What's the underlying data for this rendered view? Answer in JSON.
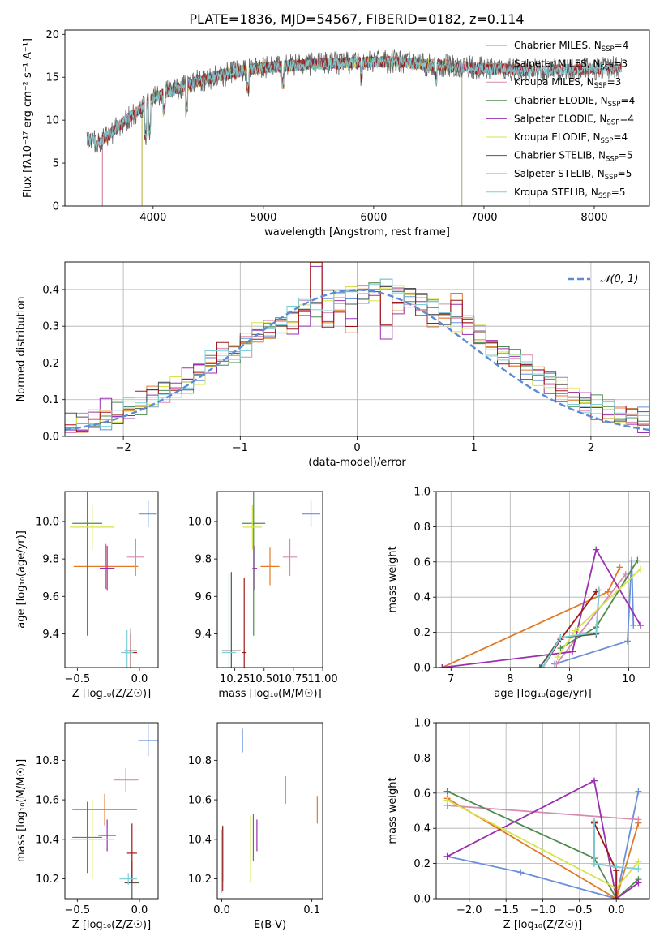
{
  "figure_title": "PLATE=1836, MJD=54567, FIBERID=0182, z=0.114",
  "model_colors": [
    "#6a8fdb",
    "#e07b28",
    "#d88ab0",
    "#4f8a4f",
    "#9a30b0",
    "#d6e34a",
    "#555555",
    "#a01818",
    "#7ecfd6"
  ],
  "chart_data": [
    {
      "id": "spectrum",
      "type": "line",
      "xlabel": "wavelength [Angstrom, rest frame]",
      "ylabel": "Flux [fλ10⁻¹⁷ erg cm⁻² s⁻¹ A⁻¹]",
      "xlim": [
        3200,
        8500
      ],
      "ylim": [
        0,
        20.5
      ],
      "xticks": [
        "4000",
        "5000",
        "6000",
        "7000",
        "8000"
      ],
      "yticks": [
        "0",
        "5",
        "10",
        "15",
        "20"
      ],
      "legend_position": "top-right",
      "continuum": {
        "x": [
          3400,
          3500,
          3600,
          3700,
          3800,
          3900,
          4000,
          4200,
          4400,
          4600,
          4800,
          5000,
          5200,
          5400,
          5600,
          5800,
          6000,
          6200,
          6400,
          6600,
          6800,
          7000,
          7200,
          7400,
          7600,
          7800,
          8000,
          8250
        ],
        "y": [
          8.0,
          7.4,
          8.2,
          9.5,
          10.5,
          11.4,
          12.6,
          13.6,
          14.5,
          15.2,
          15.7,
          16.1,
          16.3,
          16.5,
          16.6,
          16.7,
          16.8,
          16.8,
          16.5,
          16.4,
          16.2,
          16.0,
          15.9,
          15.8,
          15.8,
          15.9,
          16.0,
          16.1
        ]
      },
      "series": [
        {
          "name": "Chabrier MILES, N_SSP=4",
          "label_main": "Chabrier MILES, N",
          "label_sub": "SSP",
          "label_end": "=4",
          "x_start": 3540,
          "x_end": 7410
        },
        {
          "name": "Salpeter MILES, N_SSP=3",
          "label_main": "Salpeter MILES, N",
          "label_sub": "SSP",
          "label_end": "=3",
          "x_start": 3540,
          "x_end": 7410
        },
        {
          "name": "Kroupa MILES, N_SSP=3",
          "label_main": "Kroupa MILES, N",
          "label_sub": "SSP",
          "label_end": "=3",
          "x_start": 3540,
          "x_end": 7410
        },
        {
          "name": "Chabrier ELODIE, N_SSP=4",
          "label_main": "Chabrier ELODIE, N",
          "label_sub": "SSP",
          "label_end": "=4",
          "x_start": 3900,
          "x_end": 6800
        },
        {
          "name": "Salpeter ELODIE, N_SSP=4",
          "label_main": "Salpeter ELODIE, N",
          "label_sub": "SSP",
          "label_end": "=4",
          "x_start": 3900,
          "x_end": 6800
        },
        {
          "name": "Kroupa ELODIE, N_SSP=4",
          "label_main": "Kroupa ELODIE, N",
          "label_sub": "SSP",
          "label_end": "=4",
          "x_start": 3900,
          "x_end": 6800
        },
        {
          "name": "Chabrier STELIB, N_SSP=5",
          "label_main": "Chabrier STELIB, N",
          "label_sub": "SSP",
          "label_end": "=5",
          "x_start": 3400,
          "x_end": 8250
        },
        {
          "name": "Salpeter STELIB, N_SSP=5",
          "label_main": "Salpeter STELIB, N",
          "label_sub": "SSP",
          "label_end": "=5",
          "x_start": 3400,
          "x_end": 8250
        },
        {
          "name": "Kroupa STELIB, N_SSP=5",
          "label_main": "Kroupa STELIB, N",
          "label_sub": "SSP",
          "label_end": "=5",
          "x_start": 3400,
          "x_end": 8250
        }
      ]
    },
    {
      "id": "residuals",
      "type": "line",
      "xlabel": "(data-model)/error",
      "ylabel": "Normed distribution",
      "xlim": [
        -2.5,
        2.5
      ],
      "ylim": [
        0,
        0.475
      ],
      "xticks": [
        "−2",
        "−1",
        "0",
        "1",
        "2"
      ],
      "yticks": [
        "0.0",
        "0.1",
        "0.2",
        "0.3",
        "0.4"
      ],
      "grid": true,
      "legend_position": "top-right",
      "legend_label": "𝒩(0, 1)",
      "bin_width": 0.1,
      "series": [
        {
          "values": [
            0.03,
            0.035,
            0.045,
            0.05,
            0.06,
            0.07,
            0.085,
            0.1,
            0.12,
            0.13,
            0.15,
            0.17,
            0.2,
            0.215,
            0.23,
            0.25,
            0.28,
            0.3,
            0.31,
            0.33,
            0.35,
            0.36,
            0.37,
            0.38,
            0.39,
            0.395,
            0.4,
            0.4,
            0.395,
            0.385,
            0.37,
            0.355,
            0.335,
            0.32,
            0.3,
            0.28,
            0.25,
            0.23,
            0.21,
            0.19,
            0.17,
            0.15,
            0.13,
            0.11,
            0.095,
            0.08,
            0.07,
            0.06,
            0.05,
            0.045
          ]
        },
        {
          "values": [
            0.025,
            0.03,
            0.05,
            0.07,
            0.055,
            0.075,
            0.09,
            0.11,
            0.125,
            0.14,
            0.155,
            0.185,
            0.2,
            0.23,
            0.22,
            0.27,
            0.29,
            0.285,
            0.3,
            0.3,
            0.33,
            0.46,
            0.3,
            0.37,
            0.31,
            0.39,
            0.395,
            0.3,
            0.34,
            0.38,
            0.36,
            0.33,
            0.32,
            0.36,
            0.31,
            0.27,
            0.24,
            0.22,
            0.22,
            0.19,
            0.16,
            0.14,
            0.12,
            0.105,
            0.09,
            0.08,
            0.065,
            0.055,
            0.045,
            0.035
          ]
        }
      ]
    },
    {
      "id": "age_vs_Z",
      "type": "scatter",
      "xlabel": "Z [log₁₀(Z/Z☉)]",
      "ylabel": "age  [log₁₀(age/yr)]",
      "xlim": [
        -0.6,
        0.15
      ],
      "ylim": [
        9.22,
        10.16
      ],
      "xticks": [
        "−0.5",
        "0.0"
      ],
      "yticks": [
        "9.4",
        "9.6",
        "9.8",
        "10.0"
      ],
      "points": [
        {
          "series": 0,
          "x": 0.07,
          "y": 10.04,
          "xerr": 0.07,
          "yerr": 0.07
        },
        {
          "series": 1,
          "x": -0.27,
          "y": 9.76,
          "xerr": 0.26,
          "yerr": 0.12
        },
        {
          "series": 2,
          "x": -0.03,
          "y": 9.81,
          "xerr": 0.07,
          "yerr": 0.1
        },
        {
          "series": 3,
          "x": -0.42,
          "y": 9.99,
          "xerr": 0.12,
          "yerr": 0.6
        },
        {
          "series": 4,
          "x": -0.26,
          "y": 9.75,
          "xerr": 0.06,
          "yerr": 0.12
        },
        {
          "series": 5,
          "x": -0.38,
          "y": 9.97,
          "xerr": 0.18,
          "yerr": 0.12
        },
        {
          "series": 6,
          "x": -0.07,
          "y": 9.31,
          "xerr": 0.05,
          "yerr": 0.12
        },
        {
          "series": 7,
          "x": -0.07,
          "y": 9.3,
          "xerr": 0.05,
          "yerr": 0.1
        },
        {
          "series": 8,
          "x": -0.1,
          "y": 9.3,
          "xerr": 0.05,
          "yerr": 0.12
        }
      ]
    },
    {
      "id": "age_vs_mass",
      "type": "scatter",
      "xlabel": "mass [log₁₀(M/M☉)]",
      "ylabel": "",
      "xlim": [
        10.1,
        11.0
      ],
      "ylim": [
        9.22,
        10.16
      ],
      "xticks": [
        "10.25",
        "10.50",
        "10.75",
        "11.00"
      ],
      "yticks": [
        "9.4",
        "9.6",
        "9.8",
        "10.0"
      ],
      "points": [
        {
          "series": 0,
          "x": 10.9,
          "y": 10.04,
          "xerr": 0.08,
          "yerr": 0.07
        },
        {
          "series": 1,
          "x": 10.55,
          "y": 9.76,
          "xerr": 0.08,
          "yerr": 0.1
        },
        {
          "series": 2,
          "x": 10.72,
          "y": 9.81,
          "xerr": 0.06,
          "yerr": 0.1
        },
        {
          "series": 3,
          "x": 10.41,
          "y": 9.99,
          "xerr": 0.1,
          "yerr": 0.6
        },
        {
          "series": 4,
          "x": 10.42,
          "y": 9.75,
          "xerr": 0.02,
          "yerr": 0.12
        },
        {
          "series": 5,
          "x": 10.4,
          "y": 9.97,
          "xerr": 0.08,
          "yerr": 0.12
        },
        {
          "series": 6,
          "x": 10.22,
          "y": 9.31,
          "xerr": 0.08,
          "yerr": 0.42
        },
        {
          "series": 7,
          "x": 10.33,
          "y": 9.3,
          "xerr": 0.02,
          "yerr": 0.4
        },
        {
          "series": 8,
          "x": 10.2,
          "y": 9.3,
          "xerr": 0.06,
          "yerr": 0.42
        }
      ]
    },
    {
      "id": "mass_weight_vs_age",
      "type": "line",
      "xlabel": "age  [log₁₀(age/yr)]",
      "ylabel": "mass weight",
      "xlim": [
        6.75,
        10.35
      ],
      "ylim": [
        0,
        1.0
      ],
      "xticks": [
        "7",
        "8",
        "9",
        "10"
      ],
      "yticks": [
        "0.0",
        "0.2",
        "0.4",
        "0.6",
        "0.8",
        "1.0"
      ],
      "grid": true,
      "series": [
        {
          "series": 0,
          "x": [
            8.75,
            9.98,
            10.05,
            10.08
          ],
          "y": [
            0.02,
            0.15,
            0.61,
            0.24
          ]
        },
        {
          "series": 1,
          "x": [
            6.85,
            9.65,
            9.85
          ],
          "y": [
            0.0,
            0.43,
            0.57
          ]
        },
        {
          "series": 2,
          "x": [
            8.78,
            9.95
          ],
          "y": [
            0.02,
            0.53
          ]
        },
        {
          "series": 3,
          "x": [
            8.85,
            9.45,
            10.15
          ],
          "y": [
            0.11,
            0.23,
            0.61
          ]
        },
        {
          "series": 4,
          "x": [
            6.85,
            9.05,
            9.45,
            10.2
          ],
          "y": [
            0.0,
            0.09,
            0.67,
            0.24
          ]
        },
        {
          "series": 5,
          "x": [
            8.8,
            9.1,
            10.2
          ],
          "y": [
            0.06,
            0.21,
            0.56
          ]
        },
        {
          "series": 6,
          "x": [
            8.5,
            8.85,
            9.45,
            9.5
          ],
          "y": [
            0.0,
            0.17,
            0.19,
            0.44
          ]
        },
        {
          "series": 7,
          "x": [
            8.55,
            8.85,
            9.45
          ],
          "y": [
            0.0,
            0.16,
            0.43
          ]
        },
        {
          "series": 8,
          "x": [
            8.55,
            8.85,
            9.45,
            9.5
          ],
          "y": [
            0.0,
            0.17,
            0.2,
            0.44
          ]
        }
      ]
    },
    {
      "id": "mass_vs_Z",
      "type": "scatter",
      "xlabel": "Z [log₁₀(Z/Z☉)]",
      "ylabel": "mass [log₁₀(M/M☉)]",
      "xlim": [
        -0.6,
        0.15
      ],
      "ylim": [
        10.1,
        10.99
      ],
      "xticks": [
        "−0.5",
        "0.0"
      ],
      "yticks": [
        "10.2",
        "10.4",
        "10.6",
        "10.8"
      ],
      "points": [
        {
          "series": 0,
          "x": 0.07,
          "y": 10.9,
          "xerr": 0.08,
          "yerr": 0.08
        },
        {
          "series": 1,
          "x": -0.28,
          "y": 10.55,
          "xerr": 0.26,
          "yerr": 0.08
        },
        {
          "series": 2,
          "x": -0.11,
          "y": 10.7,
          "xerr": 0.1,
          "yerr": 0.06
        },
        {
          "series": 3,
          "x": -0.42,
          "y": 10.41,
          "xerr": 0.12,
          "yerr": 0.18
        },
        {
          "series": 4,
          "x": -0.26,
          "y": 10.42,
          "xerr": 0.07,
          "yerr": 0.08
        },
        {
          "series": 5,
          "x": -0.38,
          "y": 10.4,
          "xerr": 0.18,
          "yerr": 0.2
        },
        {
          "series": 6,
          "x": -0.06,
          "y": 10.18,
          "xerr": 0.06,
          "yerr": 0.11
        },
        {
          "series": 7,
          "x": -0.06,
          "y": 10.33,
          "xerr": 0.04,
          "yerr": 0.15
        },
        {
          "series": 8,
          "x": -0.09,
          "y": 10.2,
          "xerr": 0.07,
          "yerr": 0.03
        }
      ]
    },
    {
      "id": "mass_vs_EBV",
      "type": "scatter",
      "xlabel": "E(B-V)",
      "ylabel": "",
      "xlim": [
        -0.005,
        0.112
      ],
      "ylim": [
        10.1,
        10.99
      ],
      "xticks": [
        "0.0",
        "0.1"
      ],
      "yticks": [
        "10.2",
        "10.4",
        "10.6",
        "10.8"
      ],
      "points": [
        {
          "series": 0,
          "x": 0.023,
          "y": 10.9,
          "xerr": 0.0,
          "yerr": 0.06
        },
        {
          "series": 1,
          "x": 0.106,
          "y": 10.55,
          "xerr": 0.0,
          "yerr": 0.07
        },
        {
          "series": 2,
          "x": 0.071,
          "y": 10.65,
          "xerr": 0.0,
          "yerr": 0.07
        },
        {
          "series": 3,
          "x": 0.035,
          "y": 10.41,
          "xerr": 0.0,
          "yerr": 0.12
        },
        {
          "series": 4,
          "x": 0.039,
          "y": 10.42,
          "xerr": 0.0,
          "yerr": 0.08
        },
        {
          "series": 5,
          "x": 0.032,
          "y": 10.35,
          "xerr": 0.0,
          "yerr": 0.17
        },
        {
          "series": 6,
          "x": 0.001,
          "y": 10.33,
          "xerr": 0.0,
          "yerr": 0.14
        },
        {
          "series": 7,
          "x": 0.001,
          "y": 10.3,
          "xerr": 0.0,
          "yerr": 0.16
        },
        {
          "series": 8,
          "x": 0.0,
          "y": 10.29,
          "xerr": 0.0,
          "yerr": 0.16
        }
      ]
    },
    {
      "id": "mass_weight_vs_Z",
      "type": "line",
      "xlabel": "Z [log₁₀(Z/Z☉)]",
      "ylabel": "mass weight",
      "xlim": [
        -2.45,
        0.45
      ],
      "ylim": [
        0,
        1.0
      ],
      "xticks": [
        "−2.0",
        "−1.5",
        "−1.0",
        "−0.5",
        "0.0"
      ],
      "yticks": [
        "0.0",
        "0.2",
        "0.4",
        "0.6",
        "0.8",
        "1.0"
      ],
      "grid": true,
      "series": [
        {
          "series": 0,
          "x": [
            -2.3,
            -1.3,
            0.0,
            0.3
          ],
          "y": [
            0.24,
            0.15,
            0.0,
            0.61
          ]
        },
        {
          "series": 1,
          "x": [
            -2.3,
            0.0,
            0.3
          ],
          "y": [
            0.57,
            0.0,
            0.43
          ]
        },
        {
          "series": 2,
          "x": [
            -2.3,
            0.3
          ],
          "y": [
            0.53,
            0.45
          ]
        },
        {
          "series": 3,
          "x": [
            -2.3,
            -0.3,
            0.0,
            0.3
          ],
          "y": [
            0.61,
            0.23,
            0.0,
            0.11
          ]
        },
        {
          "series": 4,
          "x": [
            -2.3,
            -0.3,
            0.0,
            0.3
          ],
          "y": [
            0.24,
            0.67,
            0.0,
            0.09
          ]
        },
        {
          "series": 5,
          "x": [
            -2.3,
            0.0,
            0.3
          ],
          "y": [
            0.56,
            0.06,
            0.21
          ]
        },
        {
          "series": 6,
          "x": [
            -0.3,
            -0.3,
            0.0,
            0.0
          ],
          "y": [
            0.44,
            0.2,
            0.18,
            0.0
          ]
        },
        {
          "series": 7,
          "x": [
            -0.3,
            0.0,
            0.0
          ],
          "y": [
            0.43,
            0.16,
            0.0
          ]
        },
        {
          "series": 8,
          "x": [
            -0.3,
            -0.3,
            0.0,
            0.3
          ],
          "y": [
            0.44,
            0.2,
            0.18,
            0.17
          ]
        }
      ]
    }
  ]
}
